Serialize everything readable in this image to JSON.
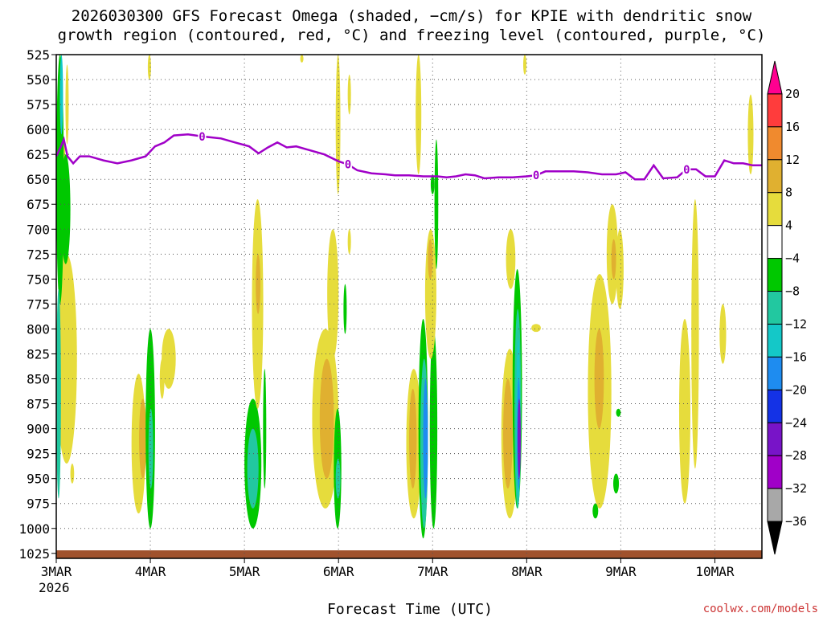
{
  "chart_data": {
    "type": "heatmap",
    "title_line1": "2026030300 GFS Forecast Omega (shaded, −cm/s) for KPIE with dendritic snow",
    "title_line2": "growth region (contoured, red, °C) and freezing level (contoured, purple, °C)",
    "xlabel": "Forecast Time (UTC)",
    "credit": "coolwx.com/models",
    "y_axis": {
      "label_values": [
        525,
        550,
        575,
        600,
        625,
        650,
        675,
        700,
        725,
        750,
        775,
        800,
        825,
        850,
        875,
        900,
        925,
        950,
        975,
        1000,
        1025
      ],
      "labels": [
        "525",
        "550",
        "575",
        "600",
        "625",
        "650",
        "675",
        "700",
        "725",
        "750",
        "775",
        "800",
        "825",
        "850",
        "875",
        "900",
        "925",
        "950",
        "975",
        "1000",
        "1025"
      ],
      "range": [
        525,
        1030
      ],
      "inverted": true
    },
    "x_axis": {
      "ticks": [
        {
          "day": 0,
          "label": "3MAR",
          "sub": "2026"
        },
        {
          "day": 1,
          "label": "4MAR",
          "sub": ""
        },
        {
          "day": 2,
          "label": "5MAR",
          "sub": ""
        },
        {
          "day": 3,
          "label": "6MAR",
          "sub": ""
        },
        {
          "day": 4,
          "label": "7MAR",
          "sub": ""
        },
        {
          "day": 5,
          "label": "8MAR",
          "sub": ""
        },
        {
          "day": 6,
          "label": "9MAR",
          "sub": ""
        },
        {
          "day": 7,
          "label": "10MAR",
          "sub": ""
        }
      ],
      "range": [
        0,
        7.5
      ]
    },
    "grid": true,
    "colorbar": {
      "labels": [
        "20",
        "16",
        "12",
        "8",
        "4",
        "−4",
        "−8",
        "−12",
        "−16",
        "−20",
        "−24",
        "−28",
        "−32",
        "−36"
      ],
      "colors": [
        "#ff0090",
        "#ff3c3c",
        "#f08a2e",
        "#e0b030",
        "#e6dc3c",
        "#ffffff",
        "#00c800",
        "#22c8a0",
        "#14c8c8",
        "#1e8cf0",
        "#1432e6",
        "#7814c8",
        "#a000c8",
        "#a8a8a8",
        "#000000"
      ]
    },
    "freezing_level": {
      "contour_label": "0",
      "color": "#a000c8",
      "points": [
        [
          0,
          627
        ],
        [
          0.05,
          617
        ],
        [
          0.08,
          610
        ],
        [
          0.12,
          627
        ],
        [
          0.18,
          634
        ],
        [
          0.25,
          627
        ],
        [
          0.35,
          627
        ],
        [
          0.5,
          631
        ],
        [
          0.65,
          634
        ],
        [
          0.8,
          631
        ],
        [
          0.95,
          627
        ],
        [
          1.05,
          617
        ],
        [
          1.15,
          613
        ],
        [
          1.25,
          606
        ],
        [
          1.4,
          605
        ],
        [
          1.55,
          607
        ],
        [
          1.75,
          609
        ],
        [
          1.9,
          613
        ],
        [
          2.05,
          617
        ],
        [
          2.15,
          624
        ],
        [
          2.25,
          618
        ],
        [
          2.35,
          613
        ],
        [
          2.45,
          618
        ],
        [
          2.55,
          617
        ],
        [
          2.7,
          621
        ],
        [
          2.85,
          625
        ],
        [
          3.0,
          632
        ],
        [
          3.1,
          635
        ],
        [
          3.2,
          641
        ],
        [
          3.35,
          644
        ],
        [
          3.5,
          645
        ],
        [
          3.6,
          646
        ],
        [
          3.75,
          646
        ],
        [
          3.9,
          647
        ],
        [
          4.05,
          647
        ],
        [
          4.15,
          648
        ],
        [
          4.25,
          647
        ],
        [
          4.35,
          645
        ],
        [
          4.45,
          646
        ],
        [
          4.55,
          649
        ],
        [
          4.7,
          648
        ],
        [
          4.85,
          648
        ],
        [
          5.0,
          647
        ],
        [
          5.1,
          646
        ],
        [
          5.2,
          642
        ],
        [
          5.35,
          642
        ],
        [
          5.5,
          642
        ],
        [
          5.65,
          643
        ],
        [
          5.8,
          645
        ],
        [
          5.95,
          645
        ],
        [
          6.05,
          643
        ],
        [
          6.15,
          650
        ],
        [
          6.25,
          650
        ],
        [
          6.35,
          636
        ],
        [
          6.45,
          649
        ],
        [
          6.6,
          648
        ],
        [
          6.7,
          640
        ],
        [
          6.8,
          640
        ],
        [
          6.9,
          647
        ],
        [
          7.0,
          647
        ],
        [
          7.1,
          631
        ],
        [
          7.2,
          634
        ],
        [
          7.3,
          634
        ],
        [
          7.4,
          636
        ],
        [
          7.5,
          636
        ]
      ]
    },
    "omega_shading": [
      {
        "x": 0.0,
        "y": 725,
        "w": 0.22,
        "h": 210,
        "color": "#e6dc3c"
      },
      {
        "x": 0.05,
        "y": 610,
        "w": 0.06,
        "h": 200,
        "color": "#e6dc3c"
      },
      {
        "x": 0.1,
        "y": 535,
        "w": 0.03,
        "h": 80,
        "color": "#e6dc3c"
      },
      {
        "x": 0.0,
        "y": 525,
        "w": 0.08,
        "h": 250,
        "color": "#00c800"
      },
      {
        "x": 0.04,
        "y": 525,
        "w": 0.03,
        "h": 80,
        "color": "#14c8c8"
      },
      {
        "x": 0.0,
        "y": 760,
        "w": 0.05,
        "h": 210,
        "color": "#22c8a0"
      },
      {
        "x": 0.05,
        "y": 625,
        "w": 0.1,
        "h": 110,
        "color": "#00c800"
      },
      {
        "x": 0.15,
        "y": 935,
        "w": 0.04,
        "h": 20,
        "color": "#e6dc3c"
      },
      {
        "x": 0.8,
        "y": 845,
        "w": 0.15,
        "h": 140,
        "color": "#e6dc3c"
      },
      {
        "x": 0.88,
        "y": 870,
        "w": 0.08,
        "h": 80,
        "color": "#e0b030"
      },
      {
        "x": 0.95,
        "y": 800,
        "w": 0.1,
        "h": 200,
        "color": "#00c800"
      },
      {
        "x": 0.98,
        "y": 880,
        "w": 0.05,
        "h": 80,
        "color": "#22c8a0"
      },
      {
        "x": 0.98,
        "y": 525,
        "w": 0.02,
        "h": 25,
        "color": "#e6dc3c"
      },
      {
        "x": 1.12,
        "y": 800,
        "w": 0.15,
        "h": 60,
        "color": "#e6dc3c"
      },
      {
        "x": 1.1,
        "y": 830,
        "w": 0.05,
        "h": 40,
        "color": "#e6dc3c"
      },
      {
        "x": 2.0,
        "y": 870,
        "w": 0.18,
        "h": 130,
        "color": "#00c800"
      },
      {
        "x": 2.03,
        "y": 900,
        "w": 0.12,
        "h": 80,
        "color": "#22c8a0"
      },
      {
        "x": 2.2,
        "y": 840,
        "w": 0.03,
        "h": 120,
        "color": "#00c800"
      },
      {
        "x": 2.08,
        "y": 670,
        "w": 0.12,
        "h": 210,
        "color": "#e6dc3c"
      },
      {
        "x": 2.12,
        "y": 725,
        "w": 0.05,
        "h": 60,
        "color": "#e0b030"
      },
      {
        "x": 2.6,
        "y": 525,
        "w": 0.02,
        "h": 8,
        "color": "#e6dc3c"
      },
      {
        "x": 2.72,
        "y": 800,
        "w": 0.28,
        "h": 180,
        "color": "#e6dc3c"
      },
      {
        "x": 2.8,
        "y": 830,
        "w": 0.15,
        "h": 120,
        "color": "#e0b030"
      },
      {
        "x": 2.88,
        "y": 700,
        "w": 0.12,
        "h": 130,
        "color": "#e6dc3c"
      },
      {
        "x": 2.95,
        "y": 880,
        "w": 0.08,
        "h": 120,
        "color": "#00c800"
      },
      {
        "x": 2.97,
        "y": 930,
        "w": 0.05,
        "h": 40,
        "color": "#22c8a0"
      },
      {
        "x": 2.97,
        "y": 525,
        "w": 0.05,
        "h": 140,
        "color": "#e6dc3c"
      },
      {
        "x": 3.06,
        "y": 755,
        "w": 0.02,
        "h": 50,
        "color": "#00c800"
      },
      {
        "x": 3.1,
        "y": 700,
        "w": 0.03,
        "h": 25,
        "color": "#e6dc3c"
      },
      {
        "x": 3.1,
        "y": 545,
        "w": 0.03,
        "h": 40,
        "color": "#e6dc3c"
      },
      {
        "x": 3.72,
        "y": 840,
        "w": 0.16,
        "h": 150,
        "color": "#e6dc3c"
      },
      {
        "x": 3.82,
        "y": 525,
        "w": 0.06,
        "h": 120,
        "color": "#e6dc3c"
      },
      {
        "x": 3.75,
        "y": 860,
        "w": 0.08,
        "h": 100,
        "color": "#e0b030"
      },
      {
        "x": 3.85,
        "y": 790,
        "w": 0.1,
        "h": 220,
        "color": "#00c800"
      },
      {
        "x": 3.87,
        "y": 830,
        "w": 0.08,
        "h": 170,
        "color": "#22c8a0"
      },
      {
        "x": 3.9,
        "y": 850,
        "w": 0.05,
        "h": 120,
        "color": "#1e8cf0"
      },
      {
        "x": 3.97,
        "y": 800,
        "w": 0.08,
        "h": 200,
        "color": "#00c800"
      },
      {
        "x": 4.02,
        "y": 610,
        "w": 0.04,
        "h": 130,
        "color": "#00c800"
      },
      {
        "x": 3.92,
        "y": 700,
        "w": 0.12,
        "h": 130,
        "color": "#e6dc3c"
      },
      {
        "x": 3.95,
        "y": 710,
        "w": 0.05,
        "h": 40,
        "color": "#e0b030"
      },
      {
        "x": 3.98,
        "y": 645,
        "w": 0.04,
        "h": 20,
        "color": "#00c800"
      },
      {
        "x": 4.73,
        "y": 820,
        "w": 0.18,
        "h": 170,
        "color": "#e6dc3c"
      },
      {
        "x": 4.75,
        "y": 850,
        "w": 0.1,
        "h": 110,
        "color": "#e0b030"
      },
      {
        "x": 4.85,
        "y": 740,
        "w": 0.1,
        "h": 240,
        "color": "#00c800"
      },
      {
        "x": 4.87,
        "y": 780,
        "w": 0.07,
        "h": 200,
        "color": "#22c8a0"
      },
      {
        "x": 4.89,
        "y": 810,
        "w": 0.04,
        "h": 160,
        "color": "#14c8c8"
      },
      {
        "x": 4.9,
        "y": 850,
        "w": 0.03,
        "h": 110,
        "color": "#1e8cf0"
      },
      {
        "x": 4.91,
        "y": 870,
        "w": 0.02,
        "h": 80,
        "color": "#7814c8"
      },
      {
        "x": 4.78,
        "y": 700,
        "w": 0.1,
        "h": 60,
        "color": "#e6dc3c"
      },
      {
        "x": 5.05,
        "y": 795,
        "w": 0.1,
        "h": 8,
        "color": "#e6dc3c"
      },
      {
        "x": 4.97,
        "y": 525,
        "w": 0.02,
        "h": 20,
        "color": "#e6dc3c"
      },
      {
        "x": 5.65,
        "y": 745,
        "w": 0.25,
        "h": 235,
        "color": "#e6dc3c"
      },
      {
        "x": 5.72,
        "y": 800,
        "w": 0.1,
        "h": 100,
        "color": "#e0b030"
      },
      {
        "x": 5.85,
        "y": 675,
        "w": 0.12,
        "h": 100,
        "color": "#e6dc3c"
      },
      {
        "x": 5.9,
        "y": 710,
        "w": 0.05,
        "h": 40,
        "color": "#e0b030"
      },
      {
        "x": 5.95,
        "y": 700,
        "w": 0.08,
        "h": 80,
        "color": "#e6dc3c"
      },
      {
        "x": 5.95,
        "y": 880,
        "w": 0.05,
        "h": 8,
        "color": "#00c800"
      },
      {
        "x": 5.92,
        "y": 945,
        "w": 0.06,
        "h": 20,
        "color": "#00c800"
      },
      {
        "x": 5.7,
        "y": 975,
        "w": 0.06,
        "h": 15,
        "color": "#00c800"
      },
      {
        "x": 6.62,
        "y": 790,
        "w": 0.12,
        "h": 185,
        "color": "#e6dc3c"
      },
      {
        "x": 6.75,
        "y": 670,
        "w": 0.08,
        "h": 270,
        "color": "#e6dc3c"
      },
      {
        "x": 7.05,
        "y": 775,
        "w": 0.07,
        "h": 60,
        "color": "#e6dc3c"
      },
      {
        "x": 7.35,
        "y": 565,
        "w": 0.06,
        "h": 80,
        "color": "#e6dc3c"
      }
    ]
  }
}
